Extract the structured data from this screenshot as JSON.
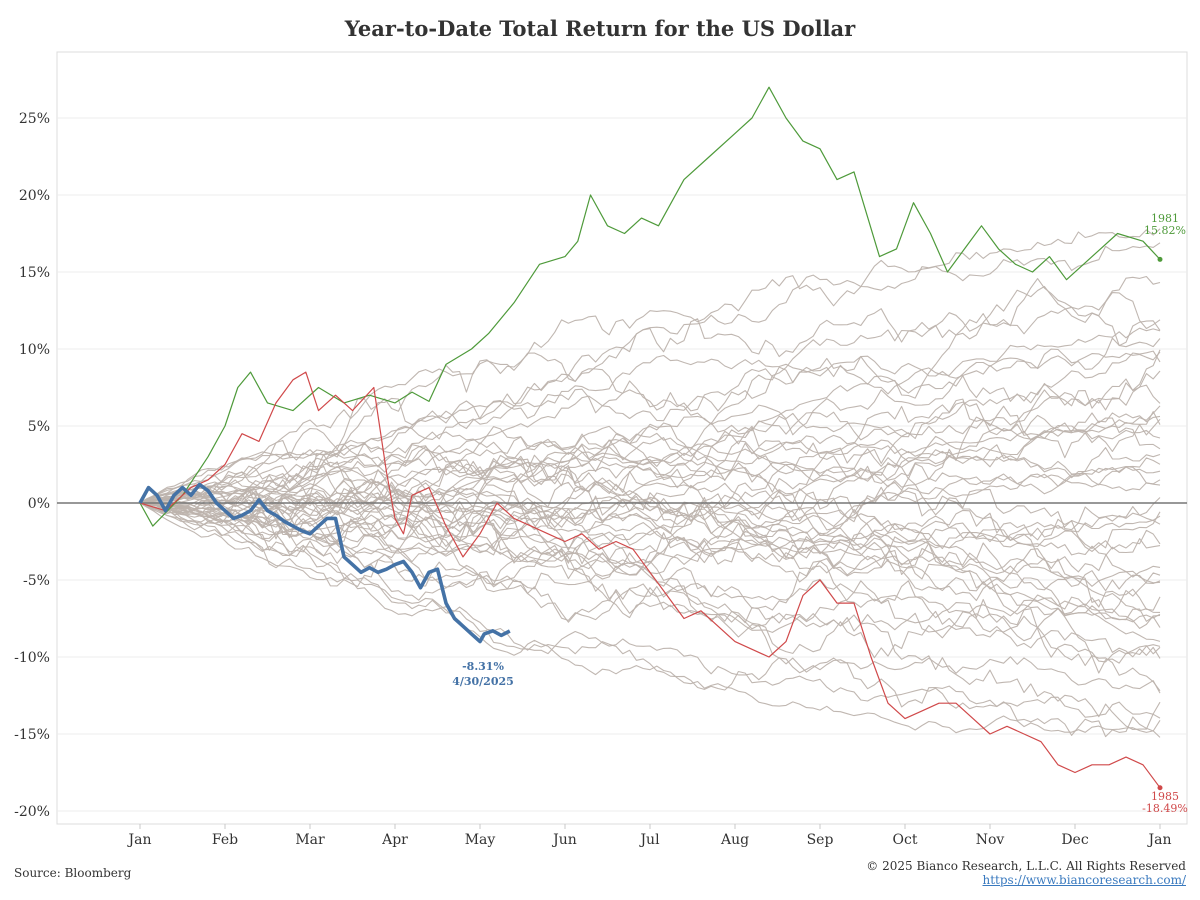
{
  "title": "Year-to-Date Total Return for the US Dollar",
  "source": "Source: Bloomberg",
  "copyright": "© 2025 Bianco Research, L.L.C. All Rights Reserved",
  "website": "https://www.biancoresearch.com/",
  "colors": {
    "history": "#bdb3ad",
    "current": "#4472a6",
    "best": "#4e9a3a",
    "worst": "#d0494a",
    "zero": "#777777",
    "grid": "#ececec",
    "axis": "#c8c8c8"
  },
  "annotations": {
    "current_value": "-8.31%",
    "current_date": "4/30/2025",
    "best_year": "1981",
    "best_value": "15.82%",
    "worst_year": "1985",
    "worst_value": "-18.49%"
  },
  "chart_data": {
    "type": "line",
    "title": "Year-to-Date Total Return for the US Dollar",
    "xlabel": "",
    "ylabel": "",
    "x_tick_labels": [
      "Jan",
      "Feb",
      "Mar",
      "Apr",
      "May",
      "Jun",
      "Jul",
      "Aug",
      "Sep",
      "Oct",
      "Nov",
      "Dec",
      "Jan"
    ],
    "y_tick_labels": [
      "25%",
      "20%",
      "15%",
      "10%",
      "5%",
      "0%",
      "-5%",
      "-10%",
      "-15%",
      "-20%"
    ],
    "y_ticks": [
      25,
      20,
      15,
      10,
      5,
      0,
      -5,
      -10,
      -15,
      -20
    ],
    "x_range_months": [
      0,
      12
    ],
    "ylim": [
      -21,
      29
    ],
    "grid": true,
    "legend": "none",
    "series": [
      {
        "name": "1981",
        "role": "best",
        "points": [
          [
            0,
            0
          ],
          [
            0.15,
            -1.5
          ],
          [
            0.5,
            0.5
          ],
          [
            0.8,
            3
          ],
          [
            1,
            5
          ],
          [
            1.15,
            7.5
          ],
          [
            1.3,
            8.5
          ],
          [
            1.5,
            6.5
          ],
          [
            1.8,
            6
          ],
          [
            2.1,
            7.5
          ],
          [
            2.4,
            6.5
          ],
          [
            2.7,
            7
          ],
          [
            3,
            6.5
          ],
          [
            3.2,
            7.2
          ],
          [
            3.4,
            6.6
          ],
          [
            3.6,
            9
          ],
          [
            3.9,
            10
          ],
          [
            4.1,
            11
          ],
          [
            4.4,
            13
          ],
          [
            4.7,
            15.5
          ],
          [
            5,
            16
          ],
          [
            5.15,
            17
          ],
          [
            5.3,
            20
          ],
          [
            5.5,
            18
          ],
          [
            5.7,
            17.5
          ],
          [
            5.9,
            18.5
          ],
          [
            6.1,
            18
          ],
          [
            6.4,
            21
          ],
          [
            6.7,
            22.5
          ],
          [
            7,
            24
          ],
          [
            7.2,
            25
          ],
          [
            7.4,
            27
          ],
          [
            7.6,
            25
          ],
          [
            7.8,
            23.5
          ],
          [
            8,
            23
          ],
          [
            8.2,
            21
          ],
          [
            8.4,
            21.5
          ],
          [
            8.7,
            16
          ],
          [
            8.9,
            16.5
          ],
          [
            9.1,
            19.5
          ],
          [
            9.3,
            17.5
          ],
          [
            9.5,
            15
          ],
          [
            9.7,
            16.5
          ],
          [
            9.9,
            18
          ],
          [
            10.1,
            16.5
          ],
          [
            10.3,
            15.5
          ],
          [
            10.5,
            15
          ],
          [
            10.7,
            16
          ],
          [
            10.9,
            14.5
          ],
          [
            11.1,
            15.5
          ],
          [
            11.3,
            16.5
          ],
          [
            11.5,
            17.5
          ],
          [
            11.8,
            17
          ],
          [
            12,
            15.82
          ]
        ]
      },
      {
        "name": "1985",
        "role": "worst",
        "points": [
          [
            0,
            0
          ],
          [
            0.3,
            -0.5
          ],
          [
            0.6,
            1
          ],
          [
            0.8,
            1.5
          ],
          [
            1,
            2.5
          ],
          [
            1.2,
            4.5
          ],
          [
            1.4,
            4
          ],
          [
            1.6,
            6.5
          ],
          [
            1.8,
            8
          ],
          [
            1.95,
            8.5
          ],
          [
            2.1,
            6
          ],
          [
            2.3,
            7
          ],
          [
            2.5,
            6
          ],
          [
            2.75,
            7.5
          ],
          [
            2.9,
            2
          ],
          [
            3,
            -1
          ],
          [
            3.1,
            -2
          ],
          [
            3.2,
            0.5
          ],
          [
            3.4,
            1
          ],
          [
            3.6,
            -1.5
          ],
          [
            3.8,
            -3.5
          ],
          [
            4,
            -2
          ],
          [
            4.2,
            0
          ],
          [
            4.4,
            -1
          ],
          [
            4.6,
            -1.5
          ],
          [
            4.8,
            -2
          ],
          [
            5,
            -2.5
          ],
          [
            5.2,
            -2
          ],
          [
            5.4,
            -3
          ],
          [
            5.6,
            -2.5
          ],
          [
            5.8,
            -3
          ],
          [
            6,
            -4.5
          ],
          [
            6.2,
            -6
          ],
          [
            6.4,
            -7.5
          ],
          [
            6.6,
            -7
          ],
          [
            6.8,
            -8
          ],
          [
            7,
            -9
          ],
          [
            7.2,
            -9.5
          ],
          [
            7.4,
            -10
          ],
          [
            7.6,
            -9
          ],
          [
            7.8,
            -6
          ],
          [
            8,
            -5
          ],
          [
            8.2,
            -6.5
          ],
          [
            8.4,
            -6.5
          ],
          [
            8.6,
            -10
          ],
          [
            8.8,
            -13
          ],
          [
            9,
            -14
          ],
          [
            9.2,
            -13.5
          ],
          [
            9.4,
            -13
          ],
          [
            9.6,
            -13
          ],
          [
            9.8,
            -14
          ],
          [
            10,
            -15
          ],
          [
            10.2,
            -14.5
          ],
          [
            10.4,
            -15
          ],
          [
            10.6,
            -15.5
          ],
          [
            10.8,
            -17
          ],
          [
            11,
            -17.5
          ],
          [
            11.2,
            -17
          ],
          [
            11.4,
            -17
          ],
          [
            11.6,
            -16.5
          ],
          [
            11.8,
            -17
          ],
          [
            12,
            -18.49
          ]
        ]
      },
      {
        "name": "2025",
        "role": "current",
        "points": [
          [
            0,
            0
          ],
          [
            0.1,
            1
          ],
          [
            0.2,
            0.5
          ],
          [
            0.3,
            -0.5
          ],
          [
            0.4,
            0.5
          ],
          [
            0.5,
            1
          ],
          [
            0.6,
            0.5
          ],
          [
            0.7,
            1.2
          ],
          [
            0.8,
            0.8
          ],
          [
            0.9,
            0
          ],
          [
            1,
            -0.5
          ],
          [
            1.1,
            -1
          ],
          [
            1.2,
            -0.8
          ],
          [
            1.3,
            -0.5
          ],
          [
            1.4,
            0.2
          ],
          [
            1.5,
            -0.5
          ],
          [
            1.6,
            -0.8
          ],
          [
            1.7,
            -1.2
          ],
          [
            1.8,
            -1.5
          ],
          [
            1.9,
            -1.8
          ],
          [
            2,
            -2
          ],
          [
            2.1,
            -1.5
          ],
          [
            2.2,
            -1
          ],
          [
            2.3,
            -1
          ],
          [
            2.4,
            -3.5
          ],
          [
            2.5,
            -4
          ],
          [
            2.6,
            -4.5
          ],
          [
            2.7,
            -4.2
          ],
          [
            2.8,
            -4.5
          ],
          [
            2.9,
            -4.3
          ],
          [
            3,
            -4
          ],
          [
            3.1,
            -3.8
          ],
          [
            3.2,
            -4.5
          ],
          [
            3.3,
            -5.5
          ],
          [
            3.4,
            -4.5
          ],
          [
            3.5,
            -4.3
          ],
          [
            3.6,
            -6.5
          ],
          [
            3.7,
            -7.5
          ],
          [
            3.8,
            -8
          ],
          [
            3.9,
            -8.5
          ],
          [
            4,
            -9
          ],
          [
            4.05,
            -8.5
          ],
          [
            4.15,
            -8.3
          ],
          [
            4.25,
            -8.6
          ],
          [
            4.35,
            -8.31
          ]
        ]
      }
    ],
    "history_band": "approximately 50 gray historical year series spanning roughly -18% to +20%"
  }
}
